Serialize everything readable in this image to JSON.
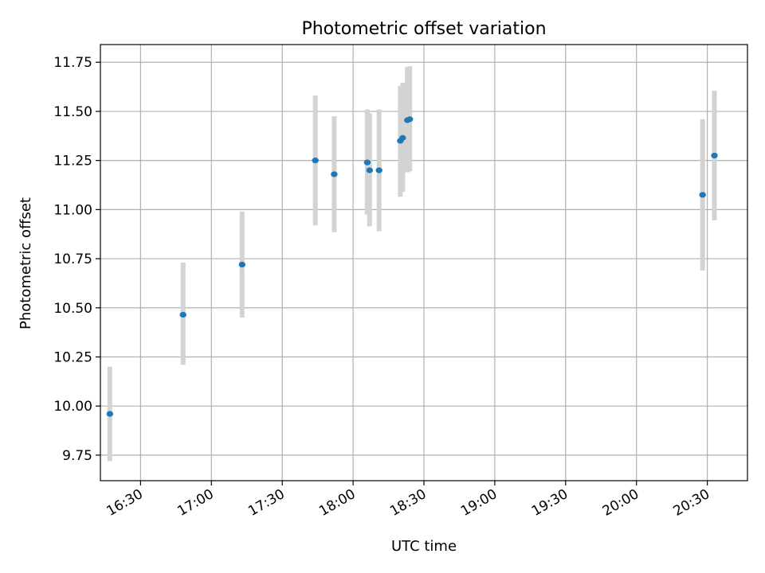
{
  "chart_data": {
    "type": "scatter",
    "title": "Photometric offset variation",
    "xlabel": "UTC time",
    "ylabel": "Photometric offset",
    "x_unit": "UTC time (HH:MM)",
    "xlim": [
      "16:13",
      "20:47"
    ],
    "ylim": [
      9.62,
      11.84
    ],
    "xticks": [
      "16:30",
      "17:00",
      "17:30",
      "18:00",
      "18:30",
      "19:00",
      "19:30",
      "20:00",
      "20:30"
    ],
    "yticks": [
      9.75,
      10.0,
      10.25,
      10.5,
      10.75,
      11.0,
      11.25,
      11.5,
      11.75
    ],
    "ytick_labels": [
      "9.75",
      "10.00",
      "10.25",
      "10.50",
      "10.75",
      "11.00",
      "11.25",
      "11.50",
      "11.75"
    ],
    "grid": true,
    "point_color": "#1f77b4",
    "errorbar_color": "#d3d3d3",
    "points": [
      {
        "time": "16:17",
        "y": 9.96,
        "err_low": 9.72,
        "err_high": 10.2
      },
      {
        "time": "16:48",
        "y": 10.465,
        "err_low": 10.21,
        "err_high": 10.73
      },
      {
        "time": "17:13",
        "y": 10.72,
        "err_low": 10.45,
        "err_high": 10.99
      },
      {
        "time": "17:44",
        "y": 11.25,
        "err_low": 10.92,
        "err_high": 11.58
      },
      {
        "time": "17:52",
        "y": 11.18,
        "err_low": 10.885,
        "err_high": 11.475
      },
      {
        "time": "18:06",
        "y": 11.24,
        "err_low": 10.975,
        "err_high": 11.51
      },
      {
        "time": "18:07",
        "y": 11.2,
        "err_low": 10.915,
        "err_high": 11.49
      },
      {
        "time": "18:11",
        "y": 11.2,
        "err_low": 10.89,
        "err_high": 11.51
      },
      {
        "time": "18:20",
        "y": 11.35,
        "err_low": 11.065,
        "err_high": 11.63
      },
      {
        "time": "18:21",
        "y": 11.365,
        "err_low": 11.09,
        "err_high": 11.645
      },
      {
        "time": "18:23",
        "y": 11.455,
        "err_low": 11.19,
        "err_high": 11.725
      },
      {
        "time": "18:24",
        "y": 11.46,
        "err_low": 11.195,
        "err_high": 11.73
      },
      {
        "time": "20:28",
        "y": 11.075,
        "err_low": 10.69,
        "err_high": 11.46
      },
      {
        "time": "20:33",
        "y": 11.275,
        "err_low": 10.945,
        "err_high": 11.605
      }
    ]
  }
}
